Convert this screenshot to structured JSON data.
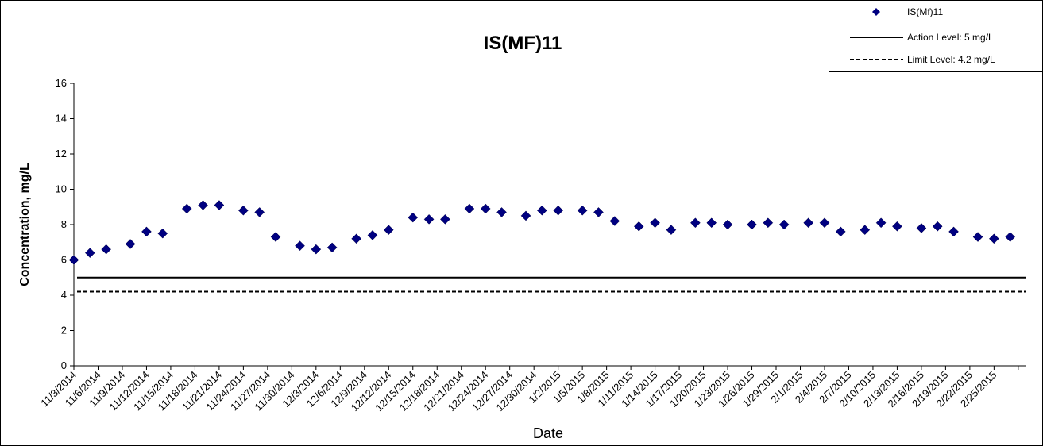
{
  "chart_data": {
    "type": "scatter",
    "title": "IS(MF)11",
    "xlabel": "Date",
    "ylabel": "Concentration, mg/L",
    "ylim": [
      0,
      16
    ],
    "yticks": [
      0,
      2,
      4,
      6,
      8,
      10,
      12,
      14,
      16
    ],
    "grid": false,
    "legend_position": "top-right",
    "x_tick_labels": [
      "11/3/2014",
      "11/6/2014",
      "11/9/2014",
      "11/12/2014",
      "11/15/2014",
      "11/18/2014",
      "11/21/2014",
      "11/24/2014",
      "11/27/2014",
      "11/30/2014",
      "12/3/2014",
      "12/6/2014",
      "12/9/2014",
      "12/12/2014",
      "12/15/2014",
      "12/18/2014",
      "12/21/2014",
      "12/24/2014",
      "12/27/2014",
      "12/30/2014",
      "1/2/2015",
      "1/5/2015",
      "1/8/2015",
      "1/11/2015",
      "1/14/2015",
      "1/17/2015",
      "1/20/2015",
      "1/23/2015",
      "1/26/2015",
      "1/29/2015",
      "2/1/2015",
      "2/4/2015",
      "2/7/2015",
      "2/10/2015",
      "2/13/2015",
      "2/16/2015",
      "2/19/2015",
      "2/22/2015",
      "2/25/2015"
    ],
    "series": [
      {
        "name": "IS(Mf)11",
        "marker": "diamond",
        "color": "#000080",
        "points": [
          {
            "x": "11/3/2014",
            "y": 6.0
          },
          {
            "x": "11/5/2014",
            "y": 6.4
          },
          {
            "x": "11/7/2014",
            "y": 6.6
          },
          {
            "x": "11/10/2014",
            "y": 6.9
          },
          {
            "x": "11/12/2014",
            "y": 7.6
          },
          {
            "x": "11/14/2014",
            "y": 7.5
          },
          {
            "x": "11/17/2014",
            "y": 8.9
          },
          {
            "x": "11/19/2014",
            "y": 9.1
          },
          {
            "x": "11/21/2014",
            "y": 9.1
          },
          {
            "x": "11/24/2014",
            "y": 8.8
          },
          {
            "x": "11/26/2014",
            "y": 8.7
          },
          {
            "x": "11/28/2014",
            "y": 7.3
          },
          {
            "x": "12/1/2014",
            "y": 6.8
          },
          {
            "x": "12/3/2014",
            "y": 6.6
          },
          {
            "x": "12/5/2014",
            "y": 6.7
          },
          {
            "x": "12/8/2014",
            "y": 7.2
          },
          {
            "x": "12/10/2014",
            "y": 7.4
          },
          {
            "x": "12/12/2014",
            "y": 7.7
          },
          {
            "x": "12/15/2014",
            "y": 8.4
          },
          {
            "x": "12/17/2014",
            "y": 8.3
          },
          {
            "x": "12/19/2014",
            "y": 8.3
          },
          {
            "x": "12/22/2014",
            "y": 8.9
          },
          {
            "x": "12/24/2014",
            "y": 8.9
          },
          {
            "x": "12/26/2014",
            "y": 8.7
          },
          {
            "x": "12/29/2014",
            "y": 8.5
          },
          {
            "x": "12/31/2014",
            "y": 8.8
          },
          {
            "x": "1/2/2015",
            "y": 8.8
          },
          {
            "x": "1/5/2015",
            "y": 8.8
          },
          {
            "x": "1/7/2015",
            "y": 8.7
          },
          {
            "x": "1/9/2015",
            "y": 8.2
          },
          {
            "x": "1/12/2015",
            "y": 7.9
          },
          {
            "x": "1/14/2015",
            "y": 8.1
          },
          {
            "x": "1/16/2015",
            "y": 7.7
          },
          {
            "x": "1/19/2015",
            "y": 8.1
          },
          {
            "x": "1/21/2015",
            "y": 8.1
          },
          {
            "x": "1/23/2015",
            "y": 8.0
          },
          {
            "x": "1/26/2015",
            "y": 8.0
          },
          {
            "x": "1/28/2015",
            "y": 8.1
          },
          {
            "x": "1/30/2015",
            "y": 8.0
          },
          {
            "x": "2/2/2015",
            "y": 8.1
          },
          {
            "x": "2/4/2015",
            "y": 8.1
          },
          {
            "x": "2/6/2015",
            "y": 7.6
          },
          {
            "x": "2/9/2015",
            "y": 7.7
          },
          {
            "x": "2/11/2015",
            "y": 8.1
          },
          {
            "x": "2/13/2015",
            "y": 7.9
          },
          {
            "x": "2/16/2015",
            "y": 7.8
          },
          {
            "x": "2/18/2015",
            "y": 7.9
          },
          {
            "x": "2/20/2015",
            "y": 7.6
          },
          {
            "x": "2/23/2015",
            "y": 7.3
          },
          {
            "x": "2/25/2015",
            "y": 7.2
          },
          {
            "x": "2/27/2015",
            "y": 7.3
          }
        ]
      }
    ],
    "reference_lines": [
      {
        "name": "Action Level: 5 mg/L",
        "y": 5,
        "style": "solid",
        "color": "#000000"
      },
      {
        "name": "Limit Level: 4.2 mg/L",
        "y": 4.2,
        "style": "dashed",
        "color": "#000000"
      }
    ]
  }
}
